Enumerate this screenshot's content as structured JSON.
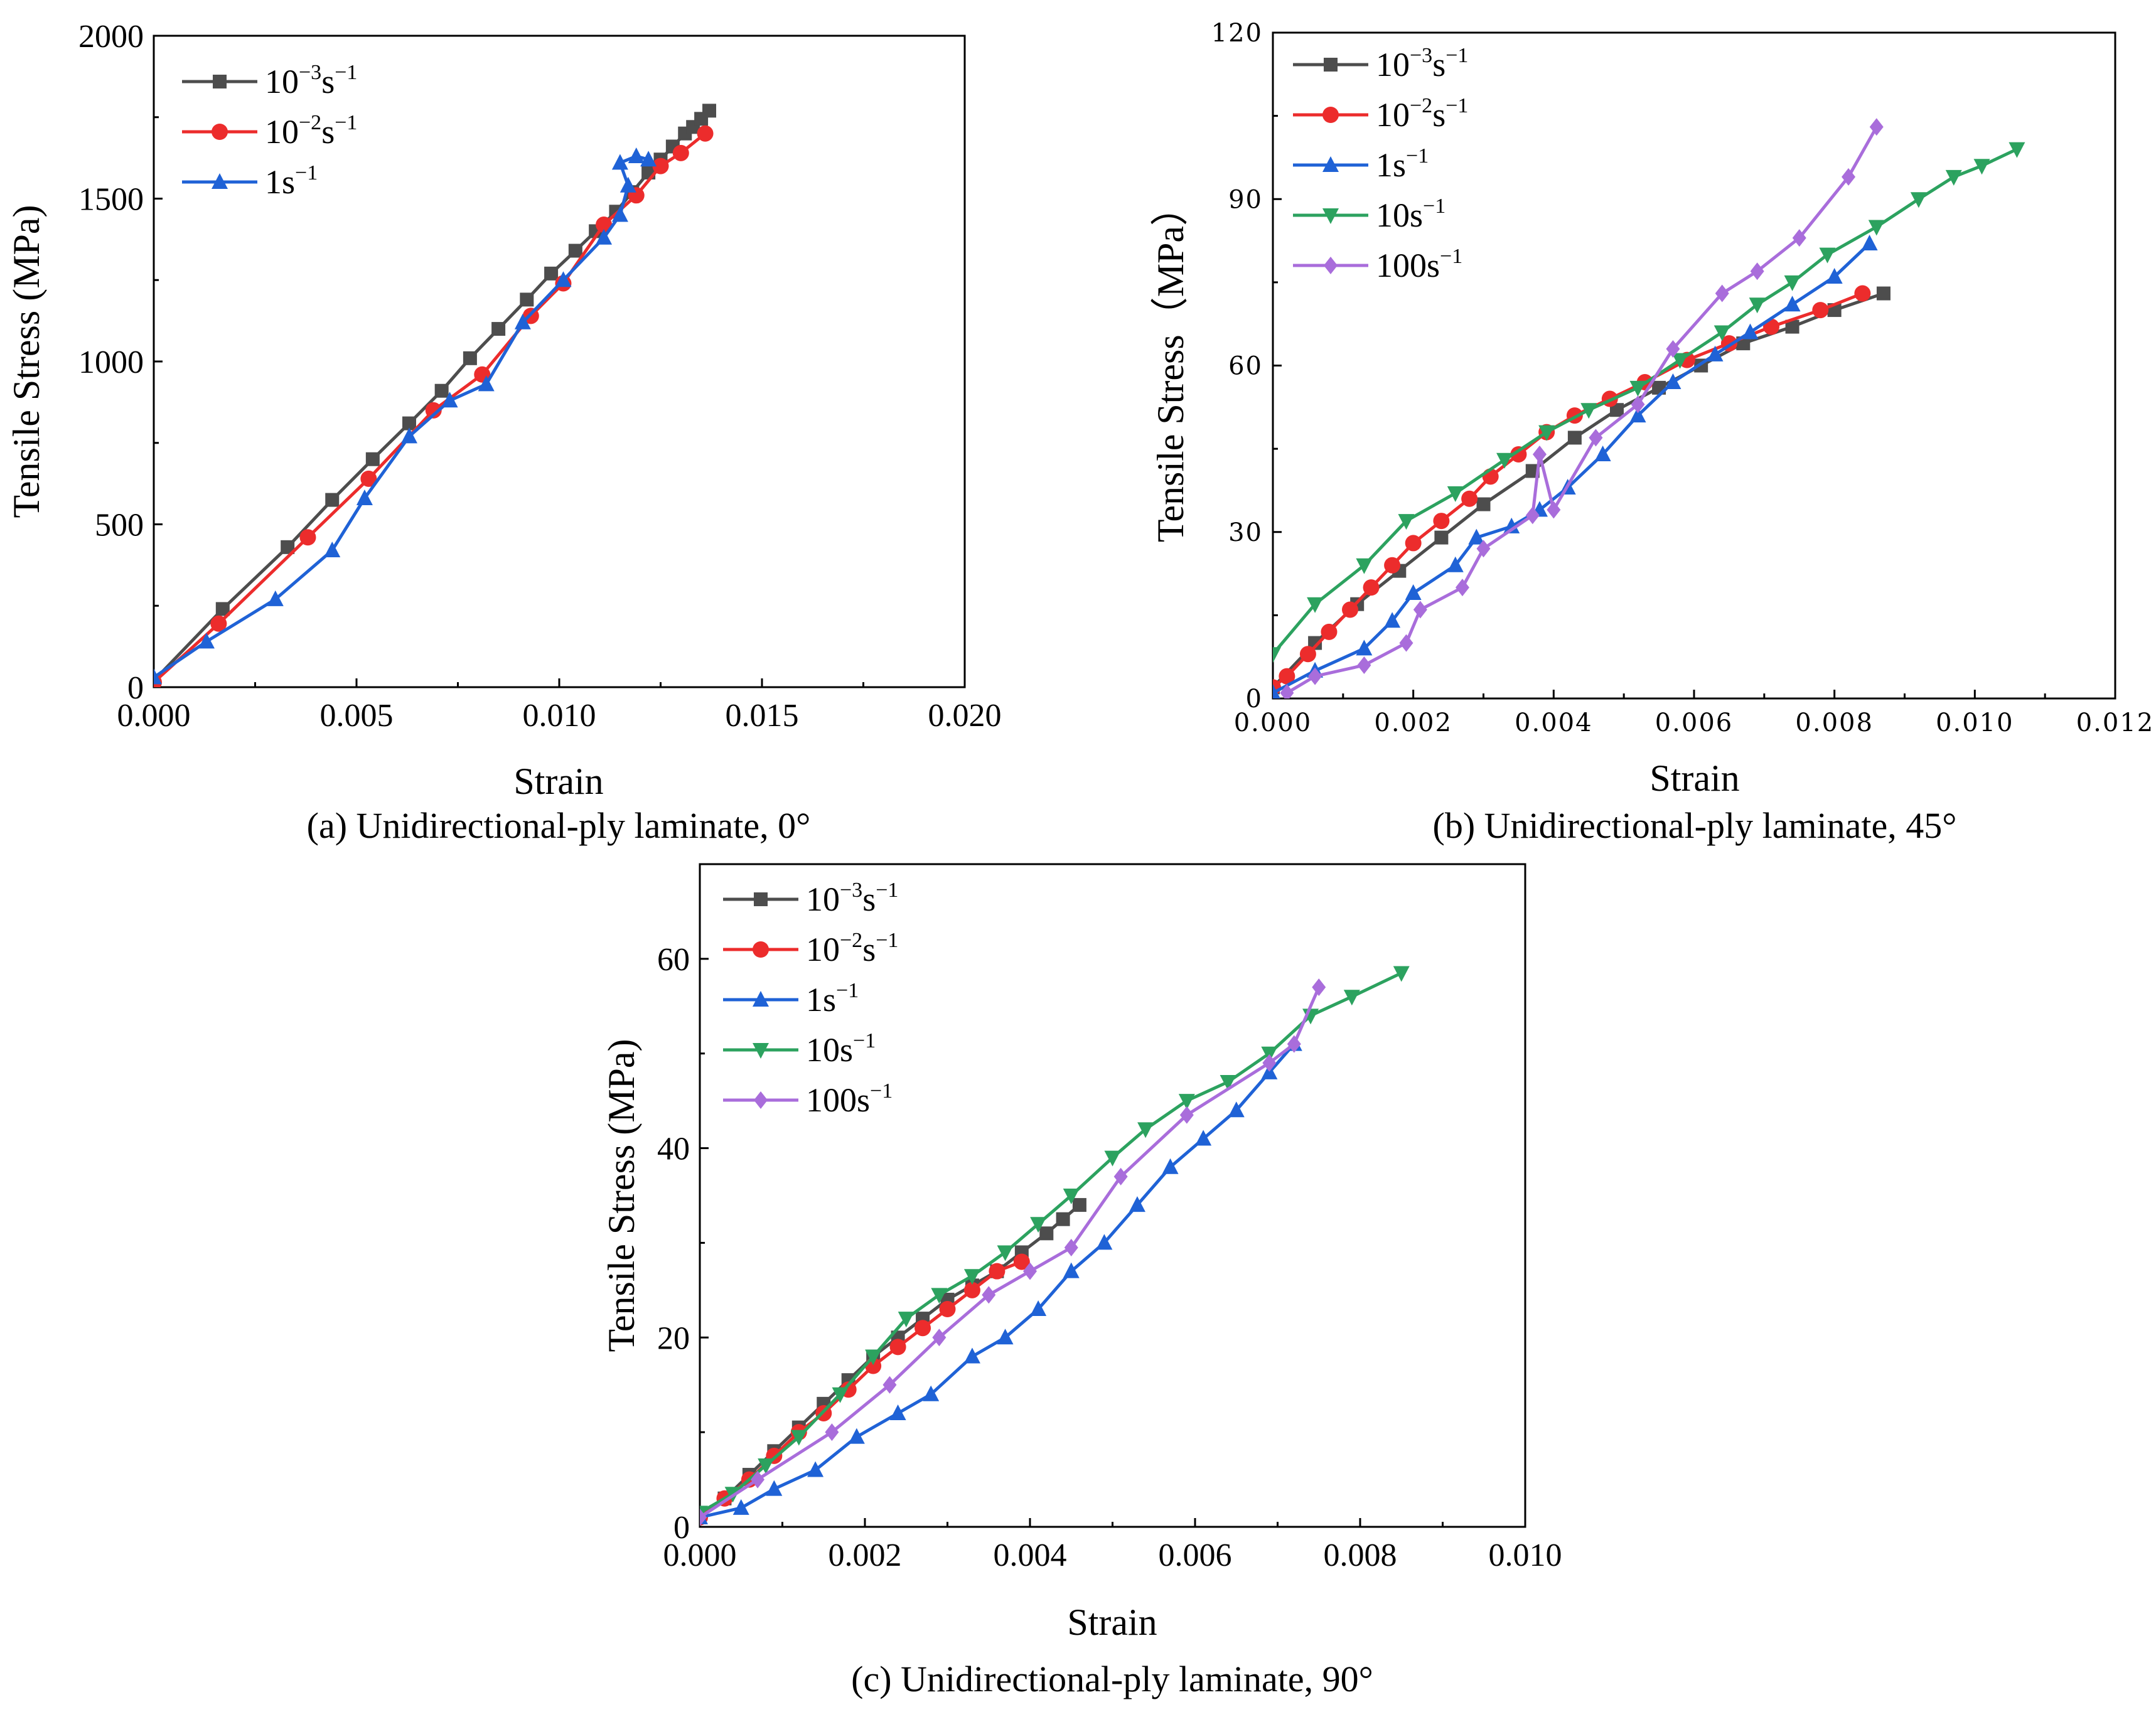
{
  "chart_data": [
    {
      "id": "a",
      "type": "line",
      "caption": "(a) Unidirectional-ply laminate, 0°",
      "xlabel": "Strain",
      "ylabel": "Tensile Stress (MPa)",
      "xlim": [
        0,
        0.02
      ],
      "ylim": [
        0,
        2000
      ],
      "xticks": [
        "0.000",
        "0.005",
        "0.010",
        "0.015",
        "0.020"
      ],
      "yticks": [
        "0",
        "500",
        "1000",
        "1500",
        "2000"
      ],
      "legend_position": "top-left",
      "series": [
        {
          "name": "10^-3 s^-1",
          "base": "10",
          "sup1": "−3",
          "unit": "s",
          "sup2": "−1",
          "color": "#4d4d4d",
          "marker": "square",
          "x": [
            0.0,
            0.0017,
            0.0033,
            0.0044,
            0.0054,
            0.0063,
            0.0071,
            0.0078,
            0.0085,
            0.0092,
            0.0098,
            0.0104,
            0.0109,
            0.0114,
            0.0118,
            0.0122,
            0.0125,
            0.0128,
            0.0131,
            0.0133,
            0.0135,
            0.0137
          ],
          "y": [
            20,
            240,
            430,
            575,
            700,
            810,
            910,
            1010,
            1100,
            1190,
            1270,
            1340,
            1400,
            1460,
            1520,
            1580,
            1620,
            1660,
            1700,
            1720,
            1745,
            1770
          ]
        },
        {
          "name": "10^-2 s^-1",
          "base": "10",
          "sup1": "−2",
          "unit": "s",
          "sup2": "−1",
          "color": "#ec2c2c",
          "marker": "circle",
          "x": [
            0.0,
            0.0016,
            0.0038,
            0.0053,
            0.0069,
            0.0081,
            0.0093,
            0.0101,
            0.0111,
            0.0119,
            0.0125,
            0.013,
            0.0136
          ],
          "y": [
            15,
            195,
            460,
            640,
            850,
            960,
            1140,
            1240,
            1420,
            1510,
            1600,
            1640,
            1700
          ]
        },
        {
          "name": "1 s^-1",
          "base": "1",
          "sup1": "",
          "unit": "s",
          "sup2": "−1",
          "color": "#1f62d6",
          "marker": "triangle-up",
          "x": [
            0.0,
            0.0013,
            0.003,
            0.0044,
            0.0052,
            0.0063,
            0.0073,
            0.0082,
            0.0091,
            0.0101,
            0.0111,
            0.0115,
            0.0117,
            0.0115,
            0.0119,
            0.0122
          ],
          "y": [
            30,
            140,
            270,
            420,
            580,
            770,
            880,
            930,
            1120,
            1250,
            1380,
            1450,
            1540,
            1610,
            1630,
            1620
          ]
        }
      ]
    },
    {
      "id": "b",
      "type": "line",
      "caption": "(b) Unidirectional-ply laminate, 45°",
      "xlabel": "Strain",
      "ylabel": "Tensile Stress（MPa）",
      "xlim": [
        0,
        0.012
      ],
      "ylim": [
        0,
        120
      ],
      "xticks": [
        "0.000",
        "0.002",
        "0.004",
        "0.006",
        "0.008",
        "0.010",
        "0.012"
      ],
      "yticks": [
        "0",
        "30",
        "60",
        "90",
        "120"
      ],
      "legend_position": "top-left",
      "series": [
        {
          "name": "10^-3 s^-1",
          "base": "10",
          "sup1": "−3",
          "unit": "s",
          "sup2": "−1",
          "color": "#4d4d4d",
          "marker": "square",
          "x": [
            0.0,
            0.0006,
            0.0012,
            0.0018,
            0.0024,
            0.003,
            0.0037,
            0.0043,
            0.0049,
            0.0055,
            0.0061,
            0.0067,
            0.0074,
            0.008,
            0.0087
          ],
          "y": [
            2,
            10,
            17,
            23,
            29,
            35,
            41,
            47,
            52,
            56,
            60,
            64,
            67,
            70,
            73
          ]
        },
        {
          "name": "10^-2 s^-1",
          "base": "10",
          "sup1": "−2",
          "unit": "s",
          "sup2": "−1",
          "color": "#ec2c2c",
          "marker": "circle",
          "x": [
            0.0,
            0.0002,
            0.0005,
            0.0008,
            0.0011,
            0.0014,
            0.0017,
            0.002,
            0.0024,
            0.0028,
            0.0031,
            0.0035,
            0.0039,
            0.0043,
            0.0048,
            0.0053,
            0.0059,
            0.0065,
            0.0071,
            0.0078,
            0.0084
          ],
          "y": [
            2,
            4,
            8,
            12,
            16,
            20,
            24,
            28,
            32,
            36,
            40,
            44,
            48,
            51,
            54,
            57,
            61,
            64,
            67,
            70,
            73
          ]
        },
        {
          "name": "1 s^-1",
          "base": "1",
          "sup1": "",
          "unit": "s",
          "sup2": "−1",
          "color": "#1f62d6",
          "marker": "triangle-up",
          "x": [
            0.0,
            0.0006,
            0.0013,
            0.0017,
            0.002,
            0.0026,
            0.0029,
            0.0034,
            0.0038,
            0.0042,
            0.0047,
            0.0052,
            0.0057,
            0.0063,
            0.0068,
            0.0074,
            0.008,
            0.0085
          ],
          "y": [
            1,
            5,
            9,
            14,
            19,
            24,
            29,
            31,
            34,
            38,
            44,
            51,
            57,
            62,
            66,
            71,
            76,
            82
          ]
        },
        {
          "name": "10 s^-1",
          "base": "10",
          "sup1": "",
          "unit": "s",
          "sup2": "−1",
          "color": "#2ca25f",
          "marker": "triangle-down",
          "x": [
            0.0,
            0.0006,
            0.0013,
            0.0019,
            0.0026,
            0.0033,
            0.0039,
            0.0045,
            0.0052,
            0.0058,
            0.0064,
            0.0069,
            0.0074,
            0.0079,
            0.0086,
            0.0092,
            0.0097,
            0.0101,
            0.0106
          ],
          "y": [
            8,
            17,
            24,
            32,
            37,
            43,
            48,
            52,
            56,
            61,
            66,
            71,
            75,
            80,
            85,
            90,
            94,
            96,
            99
          ]
        },
        {
          "name": "100 s^-1",
          "base": "100",
          "sup1": "",
          "unit": "s",
          "sup2": "−1",
          "color": "#a96ddb",
          "marker": "diamond",
          "x": [
            0.0002,
            0.0006,
            0.0013,
            0.0019,
            0.0021,
            0.0027,
            0.003,
            0.0037,
            0.0038,
            0.004,
            0.0046,
            0.0052,
            0.0057,
            0.0064,
            0.0069,
            0.0075,
            0.0082,
            0.0086
          ],
          "y": [
            1,
            4,
            6,
            10,
            16,
            20,
            27,
            33,
            44,
            34,
            47,
            53,
            63,
            73,
            77,
            83,
            94,
            103
          ]
        }
      ]
    },
    {
      "id": "c",
      "type": "line",
      "caption": "(c) Unidirectional-ply laminate, 90°",
      "xlabel": "Strain",
      "ylabel": "Tensile Stress (MPa)",
      "xlim": [
        0,
        0.01
      ],
      "ylim": [
        0,
        70
      ],
      "xticks": [
        "0.000",
        "0.002",
        "0.004",
        "0.006",
        "0.008",
        "0.010"
      ],
      "yticks": [
        "0",
        "20",
        "40",
        "60"
      ],
      "legend_position": "top-left",
      "series": [
        {
          "name": "10^-3 s^-1",
          "base": "10",
          "sup1": "−3",
          "unit": "s",
          "sup2": "−1",
          "color": "#4d4d4d",
          "marker": "square",
          "x": [
            0.0,
            0.0003,
            0.0006,
            0.0009,
            0.0012,
            0.0015,
            0.0018,
            0.0021,
            0.0024,
            0.0027,
            0.003,
            0.0033,
            0.0036,
            0.0039,
            0.0042,
            0.0044,
            0.0046
          ],
          "y": [
            1,
            3,
            5.5,
            8,
            10.5,
            13,
            15.5,
            18,
            20,
            22,
            24,
            25.5,
            27,
            29,
            31,
            32.5,
            34
          ]
        },
        {
          "name": "10^-2 s^-1",
          "base": "10",
          "sup1": "−2",
          "unit": "s",
          "sup2": "−1",
          "color": "#ec2c2c",
          "marker": "circle",
          "x": [
            0.0,
            0.0003,
            0.0006,
            0.0009,
            0.0012,
            0.0015,
            0.0018,
            0.0021,
            0.0024,
            0.0027,
            0.003,
            0.0033,
            0.0036,
            0.0039
          ],
          "y": [
            1,
            3,
            5,
            7.5,
            10,
            12,
            14.5,
            17,
            19,
            21,
            23,
            25,
            27,
            28
          ]
        },
        {
          "name": "1 s^-1",
          "base": "1",
          "sup1": "",
          "unit": "s",
          "sup2": "−1",
          "color": "#1f62d6",
          "marker": "triangle-up",
          "x": [
            0.0,
            0.0005,
            0.0009,
            0.0014,
            0.0019,
            0.0024,
            0.0028,
            0.0033,
            0.0037,
            0.0041,
            0.0045,
            0.0049,
            0.0053,
            0.0057,
            0.0061,
            0.0065,
            0.0069,
            0.0072
          ],
          "y": [
            1,
            2,
            4,
            6,
            9.5,
            12,
            14,
            18,
            20,
            23,
            27,
            30,
            34,
            38,
            41,
            44,
            48,
            51
          ]
        },
        {
          "name": "10 s^-1",
          "base": "10",
          "sup1": "",
          "unit": "s",
          "sup2": "−1",
          "color": "#2ca25f",
          "marker": "triangle-down",
          "x": [
            0.0,
            0.0004,
            0.0008,
            0.0012,
            0.0017,
            0.0021,
            0.0025,
            0.0029,
            0.0033,
            0.0037,
            0.0041,
            0.0045,
            0.005,
            0.0054,
            0.0059,
            0.0064,
            0.0069,
            0.0074,
            0.0079,
            0.0085
          ],
          "y": [
            1.5,
            3.5,
            6.5,
            9.5,
            14,
            18,
            22,
            24.5,
            26.5,
            29,
            32,
            35,
            39,
            42,
            45,
            47,
            50,
            54,
            56,
            58.5
          ]
        },
        {
          "name": "100 s^-1",
          "base": "100",
          "sup1": "",
          "unit": "s",
          "sup2": "−1",
          "color": "#a96ddb",
          "marker": "diamond",
          "x": [
            0.0,
            0.0007,
            0.0016,
            0.0023,
            0.0029,
            0.0035,
            0.004,
            0.0045,
            0.0051,
            0.0059,
            0.0069,
            0.0072,
            0.0075
          ],
          "y": [
            1,
            5,
            10,
            15,
            20,
            24.5,
            27,
            29.5,
            37,
            43.5,
            49,
            51,
            57
          ]
        }
      ]
    }
  ]
}
